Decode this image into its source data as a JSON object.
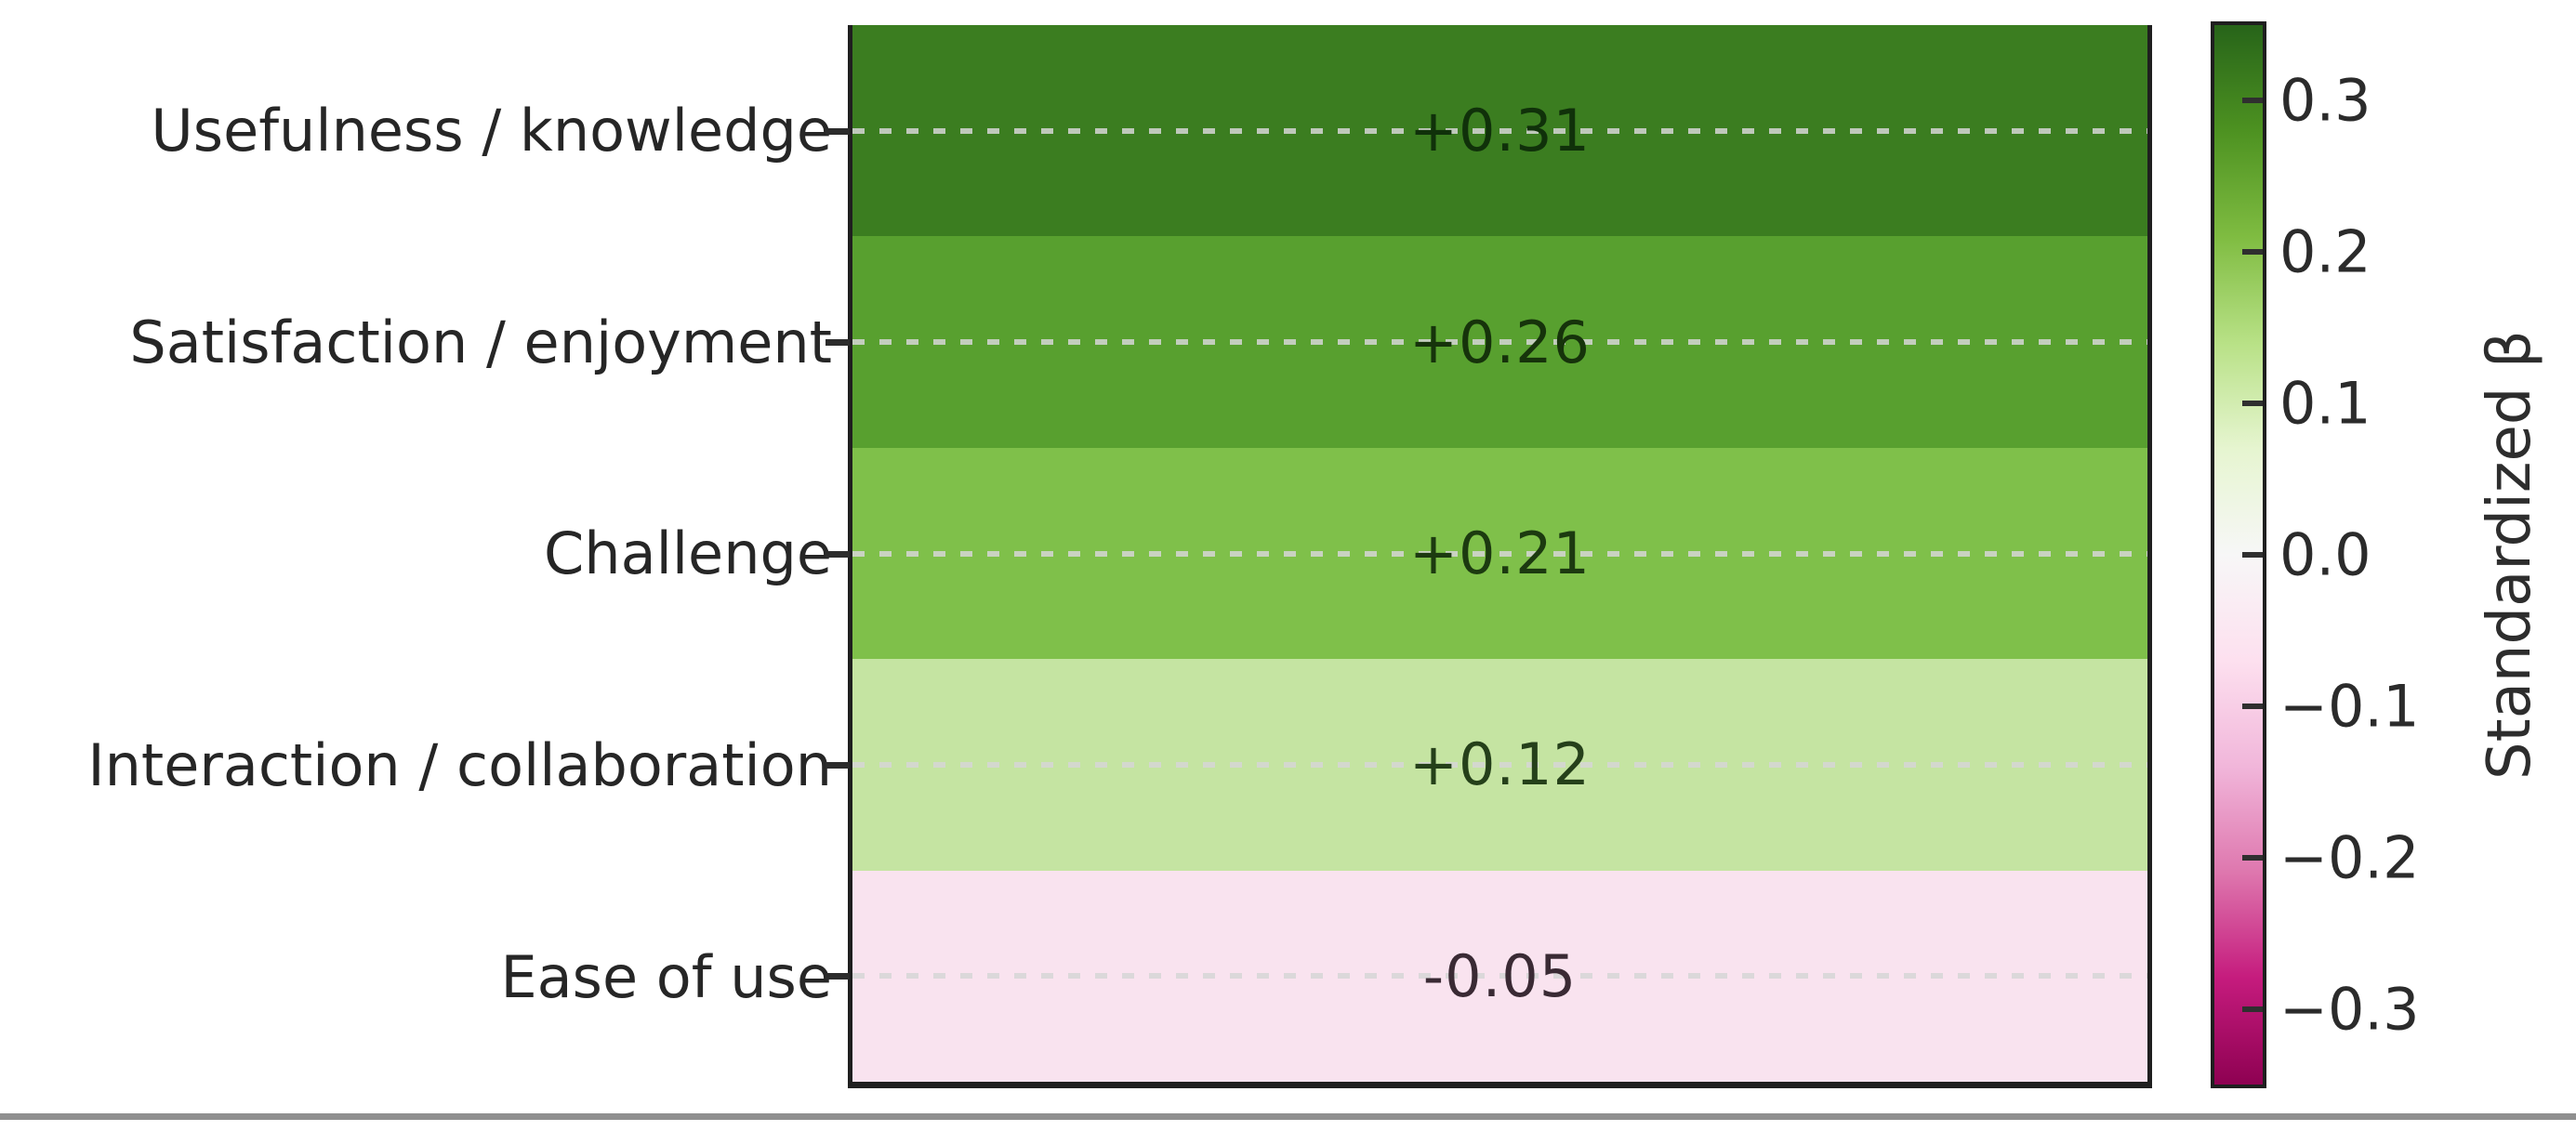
{
  "figure": {
    "background": "#ffffff",
    "bottom_rule_color": "#8f8f8f"
  },
  "chart_data": {
    "type": "heatmap",
    "title": "",
    "colormap": "PiYG",
    "legend_position": "right-colorbar",
    "grid": {
      "style": "dashed",
      "color": "#d6d6d6",
      "on": true
    },
    "categories": [
      "Usefulness / knowledge",
      "Satisfaction / enjoyment",
      "Challenge",
      "Interaction / collaboration",
      "Ease of use"
    ],
    "values": [
      0.31,
      0.26,
      0.21,
      0.12,
      -0.05
    ],
    "value_labels": [
      "+0.31",
      "+0.26",
      "+0.21",
      "+0.12",
      "-0.05"
    ],
    "cell_colors": [
      "#3b7d20",
      "#58a02f",
      "#7fc04a",
      "#c5e4a2",
      "#f9e3ef"
    ],
    "value_text_colors": [
      "#10310a",
      "#16330b",
      "#1c3a10",
      "#25401a",
      "#3a2a34"
    ],
    "colorbar": {
      "label": "Standardized β",
      "vmin": -0.35,
      "vmax": 0.35,
      "tick_values": [
        0.3,
        0.2,
        0.1,
        0.0,
        -0.1,
        -0.2,
        -0.3
      ],
      "tick_labels": [
        "0.3",
        "0.2",
        "0.1",
        "0.0",
        "−0.1",
        "−0.2",
        "−0.3"
      ],
      "gradient_top_to_bottom": [
        "#276419",
        "#4d9221",
        "#7fbc41",
        "#b8e186",
        "#e6f5d0",
        "#f7f7f7",
        "#fde0ef",
        "#f1b6da",
        "#de77ae",
        "#c51b7d",
        "#8e0152"
      ]
    }
  }
}
